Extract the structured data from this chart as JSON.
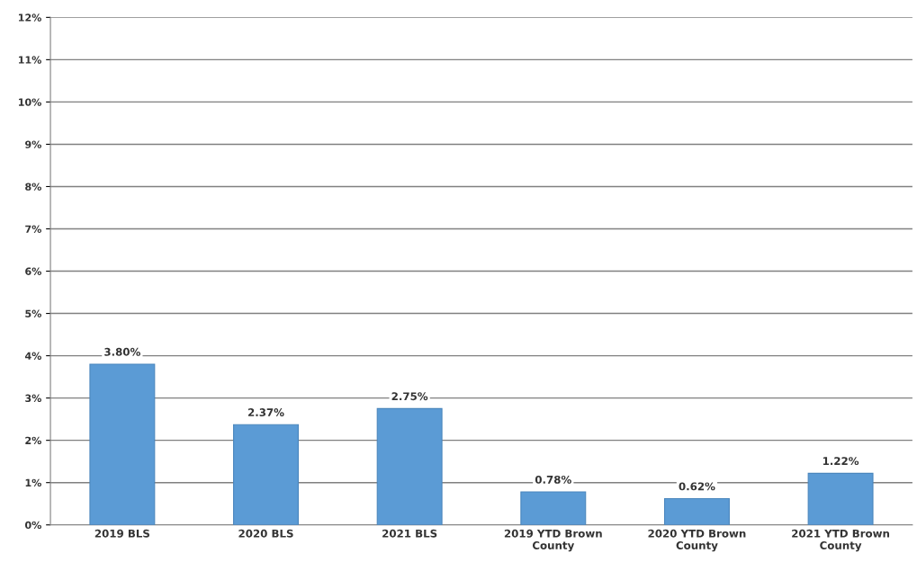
{
  "chart_data": {
    "type": "bar",
    "categories": [
      "2019 BLS",
      "2020 BLS",
      "2021 BLS",
      "2019 YTD Brown\nCounty",
      "2020 YTD Brown\nCounty",
      "2021 YTD Brown\nCounty"
    ],
    "values": [
      3.8,
      2.37,
      2.75,
      0.78,
      0.62,
      1.22
    ],
    "value_labels": [
      "3.80%",
      "2.37%",
      "2.75%",
      "0.78%",
      "0.62%",
      "1.22%"
    ],
    "color": "#5b9bd5",
    "ylim": [
      0,
      12
    ],
    "yticks": [
      {
        "value": 0,
        "label": "0%"
      },
      {
        "value": 1,
        "label": "1%"
      },
      {
        "value": 2,
        "label": "2%"
      },
      {
        "value": 3,
        "label": "3%"
      },
      {
        "value": 4,
        "label": "4%"
      },
      {
        "value": 5,
        "label": "5%"
      },
      {
        "value": 6,
        "label": "6%"
      },
      {
        "value": 7,
        "label": "7%"
      },
      {
        "value": 8,
        "label": "8%"
      },
      {
        "value": 9,
        "label": "9%"
      },
      {
        "value": 10,
        "label": "10%"
      },
      {
        "value": 11,
        "label": "11%"
      },
      {
        "value": 12,
        "label": "12%"
      }
    ],
    "grid": "y"
  }
}
